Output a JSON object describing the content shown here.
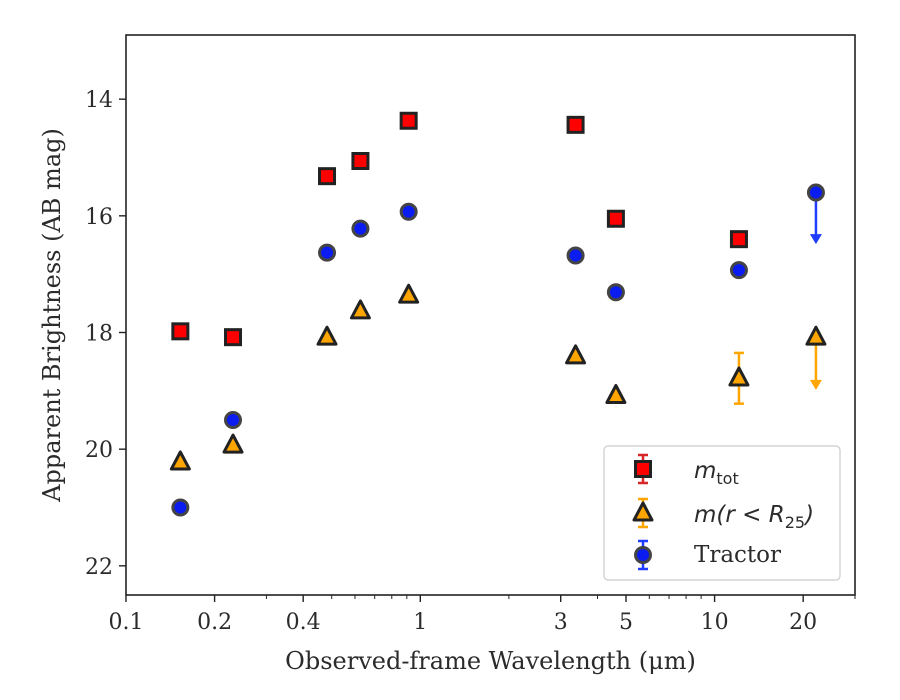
{
  "chart_data": {
    "type": "scatter",
    "title": "",
    "xlabel": "Observed-frame Wavelength (μm)",
    "ylabel": "Apparent Brightness (AB mag)",
    "xscale": "log",
    "xlim": [
      0.1,
      30
    ],
    "ylim": [
      22.5,
      12.9
    ],
    "y_inverted": true,
    "x_ticks": [
      0.1,
      0.2,
      0.4,
      1,
      3,
      5,
      10,
      20
    ],
    "x_tick_labels": [
      "0.1",
      "0.2",
      "0.4",
      "1",
      "3",
      "5",
      "10",
      "20"
    ],
    "y_ticks": [
      14,
      16,
      18,
      20,
      22
    ],
    "y_tick_labels": [
      "14",
      "16",
      "18",
      "20",
      "22"
    ],
    "grid": false,
    "legend_position": "lower-right",
    "series": [
      {
        "name": "m_tot",
        "legend_main": "m",
        "legend_sub": "tot",
        "marker": "square",
        "color": "#ff0000",
        "edge_color": "#222222",
        "error_color": "#d62728",
        "points": [
          {
            "x": 0.153,
            "y": 17.98
          },
          {
            "x": 0.231,
            "y": 18.08
          },
          {
            "x": 0.482,
            "y": 15.32
          },
          {
            "x": 0.626,
            "y": 15.06
          },
          {
            "x": 0.913,
            "y": 14.37
          },
          {
            "x": 3.37,
            "y": 14.44
          },
          {
            "x": 4.62,
            "y": 16.05
          },
          {
            "x": 12.1,
            "y": 16.4
          }
        ]
      },
      {
        "name": "m(r < R25)",
        "legend_main": "m(r < R",
        "legend_sub": "25",
        "legend_tail": ")",
        "marker": "triangle",
        "color": "#ffa500",
        "edge_color": "#222222",
        "error_color": "#ffa500",
        "points": [
          {
            "x": 0.153,
            "y": 20.22
          },
          {
            "x": 0.231,
            "y": 19.93
          },
          {
            "x": 0.482,
            "y": 18.08
          },
          {
            "x": 0.626,
            "y": 17.63
          },
          {
            "x": 0.913,
            "y": 17.36
          },
          {
            "x": 3.37,
            "y": 18.4
          },
          {
            "x": 4.62,
            "y": 19.08
          },
          {
            "x": 12.1,
            "y": 18.78,
            "yerr": [
              18.35,
              19.22
            ]
          },
          {
            "x": 22.1,
            "y": 18.08,
            "upper_limit": true,
            "arrow_to": 18.95
          }
        ]
      },
      {
        "name": "Tractor",
        "marker": "circle",
        "color": "#0a1cf0",
        "edge_color": "#444444",
        "error_color": "#1f3cff",
        "points": [
          {
            "x": 0.153,
            "y": 21.0
          },
          {
            "x": 0.231,
            "y": 19.5
          },
          {
            "x": 0.482,
            "y": 16.63
          },
          {
            "x": 0.626,
            "y": 16.22
          },
          {
            "x": 0.913,
            "y": 15.93
          },
          {
            "x": 3.37,
            "y": 16.68
          },
          {
            "x": 4.62,
            "y": 17.31
          },
          {
            "x": 12.1,
            "y": 16.93
          },
          {
            "x": 22.1,
            "y": 15.6,
            "upper_limit": true,
            "arrow_to": 16.45
          }
        ]
      }
    ]
  }
}
